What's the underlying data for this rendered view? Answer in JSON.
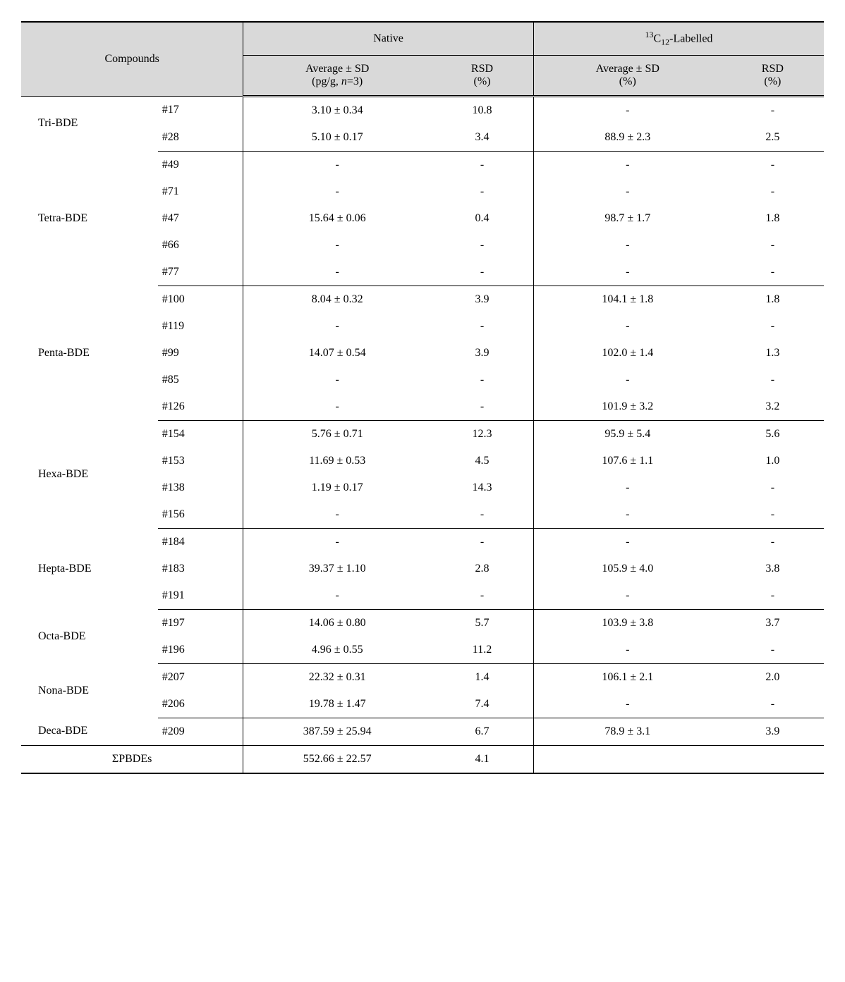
{
  "headers": {
    "compounds": "Compounds",
    "native": "Native",
    "labelled_pre": "13",
    "labelled_mid": "C",
    "labelled_sub": "12",
    "labelled_post": "-Labelled",
    "native_avg_line1": "Average ± SD",
    "native_avg_line2_pre": "(pg/g, ",
    "native_avg_line2_n": "n",
    "native_avg_line2_post": "=3)",
    "native_rsd_line1": "RSD",
    "native_rsd_line2": "(%)",
    "lab_avg_line1": "Average ± SD",
    "lab_avg_line2": "(%)",
    "lab_rsd_line1": "RSD",
    "lab_rsd_line2": "(%)"
  },
  "groups": [
    {
      "name": "Tri-BDE",
      "rows": [
        {
          "congener": "#17",
          "native_avg": "3.10 ± 0.34",
          "native_rsd": "10.8",
          "lab_avg": "-",
          "lab_rsd": "-"
        },
        {
          "congener": "#28",
          "native_avg": "5.10 ± 0.17",
          "native_rsd": "3.4",
          "lab_avg": "88.9 ± 2.3",
          "lab_rsd": "2.5"
        }
      ]
    },
    {
      "name": "Tetra-BDE",
      "rows": [
        {
          "congener": "#49",
          "native_avg": "-",
          "native_rsd": "-",
          "lab_avg": "-",
          "lab_rsd": "-"
        },
        {
          "congener": "#71",
          "native_avg": "-",
          "native_rsd": "-",
          "lab_avg": "-",
          "lab_rsd": "-"
        },
        {
          "congener": "#47",
          "native_avg": "15.64 ± 0.06",
          "native_rsd": "0.4",
          "lab_avg": "98.7 ± 1.7",
          "lab_rsd": "1.8"
        },
        {
          "congener": "#66",
          "native_avg": "-",
          "native_rsd": "-",
          "lab_avg": "-",
          "lab_rsd": "-"
        },
        {
          "congener": "#77",
          "native_avg": "-",
          "native_rsd": "-",
          "lab_avg": "-",
          "lab_rsd": "-"
        }
      ]
    },
    {
      "name": "Penta-BDE",
      "rows": [
        {
          "congener": "#100",
          "native_avg": "8.04 ± 0.32",
          "native_rsd": "3.9",
          "lab_avg": "104.1 ± 1.8",
          "lab_rsd": "1.8"
        },
        {
          "congener": "#119",
          "native_avg": "-",
          "native_rsd": "-",
          "lab_avg": "-",
          "lab_rsd": "-"
        },
        {
          "congener": "#99",
          "native_avg": "14.07 ± 0.54",
          "native_rsd": "3.9",
          "lab_avg": "102.0 ± 1.4",
          "lab_rsd": "1.3"
        },
        {
          "congener": "#85",
          "native_avg": "-",
          "native_rsd": "-",
          "lab_avg": "-",
          "lab_rsd": "-"
        },
        {
          "congener": "#126",
          "native_avg": "-",
          "native_rsd": "-",
          "lab_avg": "101.9 ± 3.2",
          "lab_rsd": "3.2"
        }
      ]
    },
    {
      "name": "Hexa-BDE",
      "rows": [
        {
          "congener": "#154",
          "native_avg": "5.76 ± 0.71",
          "native_rsd": "12.3",
          "lab_avg": "95.9 ± 5.4",
          "lab_rsd": "5.6"
        },
        {
          "congener": "#153",
          "native_avg": "11.69 ± 0.53",
          "native_rsd": "4.5",
          "lab_avg": "107.6 ± 1.1",
          "lab_rsd": "1.0"
        },
        {
          "congener": "#138",
          "native_avg": "1.19 ± 0.17",
          "native_rsd": "14.3",
          "lab_avg": "-",
          "lab_rsd": "-"
        },
        {
          "congener": "#156",
          "native_avg": "-",
          "native_rsd": "-",
          "lab_avg": "-",
          "lab_rsd": "-"
        }
      ]
    },
    {
      "name": "Hepta-BDE",
      "rows": [
        {
          "congener": "#184",
          "native_avg": "-",
          "native_rsd": "-",
          "lab_avg": "-",
          "lab_rsd": "-"
        },
        {
          "congener": "#183",
          "native_avg": "39.37 ± 1.10",
          "native_rsd": "2.8",
          "lab_avg": "105.9 ± 4.0",
          "lab_rsd": "3.8"
        },
        {
          "congener": "#191",
          "native_avg": "-",
          "native_rsd": "-",
          "lab_avg": "-",
          "lab_rsd": "-"
        }
      ]
    },
    {
      "name": "Octa-BDE",
      "rows": [
        {
          "congener": "#197",
          "native_avg": "14.06 ± 0.80",
          "native_rsd": "5.7",
          "lab_avg": "103.9 ± 3.8",
          "lab_rsd": "3.7"
        },
        {
          "congener": "#196",
          "native_avg": "4.96 ± 0.55",
          "native_rsd": "11.2",
          "lab_avg": "-",
          "lab_rsd": "-"
        }
      ]
    },
    {
      "name": "Nona-BDE",
      "rows": [
        {
          "congener": "#207",
          "native_avg": "22.32 ± 0.31",
          "native_rsd": "1.4",
          "lab_avg": "106.1 ± 2.1",
          "lab_rsd": "2.0"
        },
        {
          "congener": "#206",
          "native_avg": "19.78 ± 1.47",
          "native_rsd": "7.4",
          "lab_avg": "-",
          "lab_rsd": "-"
        }
      ]
    },
    {
      "name": "Deca-BDE",
      "rows": [
        {
          "congener": "#209",
          "native_avg": "387.59 ± 25.94",
          "native_rsd": "6.7",
          "lab_avg": "78.9 ± 3.1",
          "lab_rsd": "3.9"
        }
      ]
    }
  ],
  "total": {
    "label": "ΣPBDEs",
    "native_avg": "552.66 ± 22.57",
    "native_rsd": "4.1",
    "lab_avg": "",
    "lab_rsd": ""
  }
}
